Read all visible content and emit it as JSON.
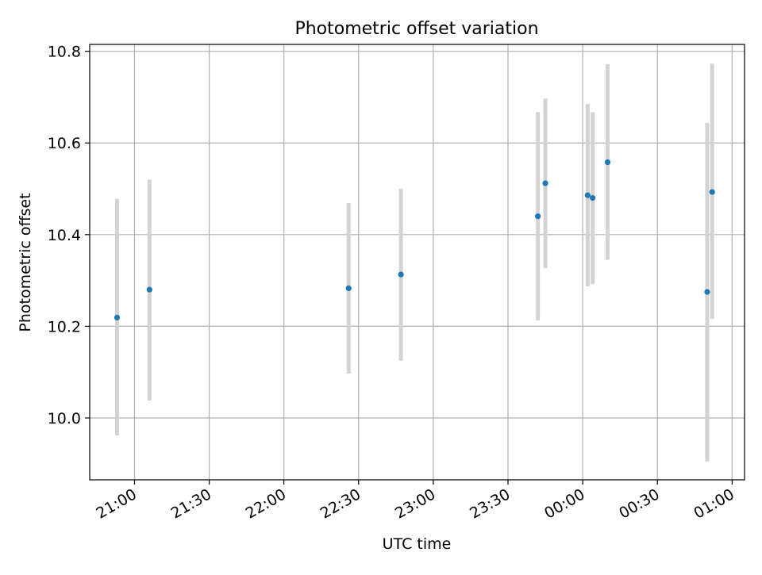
{
  "chart_data": {
    "type": "scatter",
    "title": "Photometric offset variation",
    "xlabel": "UTC time",
    "ylabel": "Photometric offset",
    "xlim": [
      "20:42",
      "01:05"
    ],
    "ylim": [
      9.865,
      10.815
    ],
    "x_ticks": [
      "21:00",
      "21:30",
      "22:00",
      "22:30",
      "23:00",
      "23:30",
      "00:00",
      "00:30",
      "01:00"
    ],
    "y_ticks": [
      "10.0",
      "10.2",
      "10.4",
      "10.6",
      "10.8"
    ],
    "grid": true,
    "series": [
      {
        "marker_color": "#1f77b4",
        "errorbar_color": "#d3d3d3",
        "points": [
          {
            "time": "20:53",
            "y": 10.219,
            "ylow": 9.962,
            "yhigh": 10.478
          },
          {
            "time": "21:06",
            "y": 10.28,
            "ylow": 10.038,
            "yhigh": 10.52
          },
          {
            "time": "22:26",
            "y": 10.283,
            "ylow": 10.097,
            "yhigh": 10.469
          },
          {
            "time": "22:47",
            "y": 10.313,
            "ylow": 10.125,
            "yhigh": 10.5
          },
          {
            "time": "23:42",
            "y": 10.44,
            "ylow": 10.213,
            "yhigh": 10.667
          },
          {
            "time": "23:45",
            "y": 10.512,
            "ylow": 10.327,
            "yhigh": 10.697
          },
          {
            "time": "00:02",
            "y": 10.486,
            "ylow": 10.287,
            "yhigh": 10.685
          },
          {
            "time": "00:04",
            "y": 10.48,
            "ylow": 10.292,
            "yhigh": 10.667
          },
          {
            "time": "00:10",
            "y": 10.558,
            "ylow": 10.345,
            "yhigh": 10.772
          },
          {
            "time": "00:50",
            "y": 10.275,
            "ylow": 9.905,
            "yhigh": 10.644
          },
          {
            "time": "00:52",
            "y": 10.493,
            "ylow": 10.216,
            "yhigh": 10.773
          }
        ]
      }
    ]
  }
}
